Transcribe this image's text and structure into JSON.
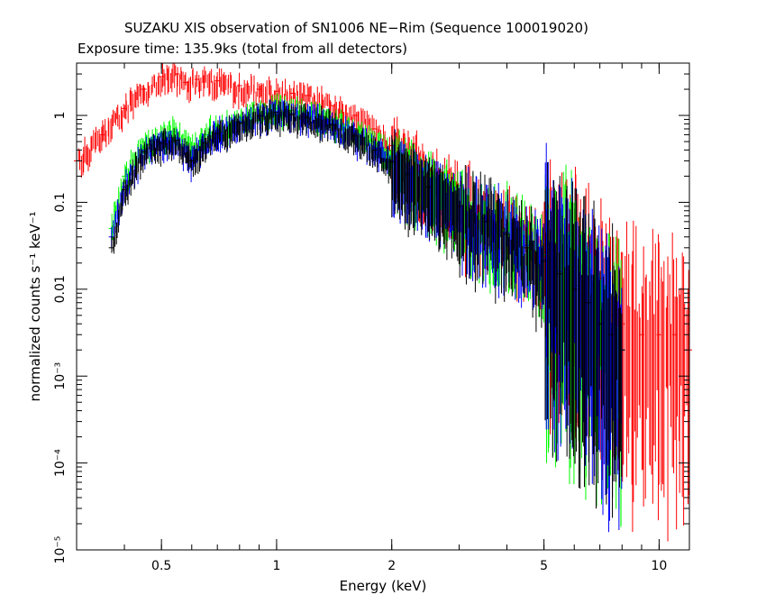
{
  "chart_data": {
    "type": "scatter",
    "title": "SUZAKU XIS observation of SN1006 NE−Rim (Sequence 100019020)",
    "subtitle": "Exposure time: 135.9ks (total from all detectors)",
    "xlabel": "Energy (keV)",
    "ylabel": "normalized counts s⁻¹ keV⁻¹",
    "xscale": "log",
    "yscale": "log",
    "xlim": [
      0.3,
      12
    ],
    "ylim": [
      1e-05,
      4
    ],
    "grid": false,
    "legend": "none",
    "x_ticks": [
      {
        "value": 0.5,
        "label": "0.5"
      },
      {
        "value": 1,
        "label": "1"
      },
      {
        "value": 2,
        "label": "2"
      },
      {
        "value": 5,
        "label": "5"
      },
      {
        "value": 10,
        "label": "10"
      }
    ],
    "y_ticks": [
      {
        "value": 1e-05,
        "label": "10⁻⁵"
      },
      {
        "value": 0.0001,
        "label": "10⁻⁴"
      },
      {
        "value": 0.001,
        "label": "10⁻³"
      },
      {
        "value": 0.01,
        "label": "0.01"
      },
      {
        "value": 0.1,
        "label": "0.1"
      },
      {
        "value": 1,
        "label": "1"
      }
    ],
    "series": [
      {
        "color": "#ff0000",
        "x": [
          0.3,
          0.35,
          0.4,
          0.45,
          0.5,
          0.55,
          0.58,
          0.62,
          0.7,
          0.8,
          0.9,
          1.0,
          1.1,
          1.2,
          1.4,
          1.6,
          1.8,
          2.0,
          2.2,
          2.5,
          3.0,
          3.5,
          4.0,
          4.5,
          5.0,
          5.5,
          6.0,
          6.5,
          7.0,
          7.5,
          8.0,
          9.0,
          10.0,
          11.0,
          12.0
        ],
        "y": [
          0.3,
          0.6,
          1.2,
          2.0,
          2.8,
          3.0,
          2.4,
          2.6,
          2.5,
          2.2,
          2.0,
          1.9,
          1.8,
          1.7,
          1.3,
          1.0,
          0.7,
          0.45,
          0.32,
          0.2,
          0.12,
          0.08,
          0.055,
          0.04,
          0.03,
          0.025,
          0.018,
          0.012,
          0.008,
          0.005,
          0.004,
          0.003,
          0.003,
          0.003,
          0.002
        ]
      },
      {
        "color": "#00ff00",
        "x": [
          0.37,
          0.4,
          0.45,
          0.5,
          0.55,
          0.6,
          0.65,
          0.7,
          0.8,
          0.9,
          1.0,
          1.1,
          1.2,
          1.4,
          1.6,
          1.8,
          2.0,
          2.2,
          2.5,
          3.0,
          3.5,
          4.0,
          4.5,
          5.0,
          5.5,
          6.0,
          6.5,
          7.0,
          7.5,
          8.0
        ],
        "y": [
          0.05,
          0.2,
          0.5,
          0.6,
          0.65,
          0.4,
          0.6,
          0.75,
          0.95,
          1.1,
          1.2,
          1.15,
          1.1,
          0.9,
          0.7,
          0.5,
          0.35,
          0.25,
          0.17,
          0.1,
          0.07,
          0.05,
          0.035,
          0.025,
          0.018,
          0.012,
          0.008,
          0.005,
          0.003,
          0.002
        ]
      },
      {
        "color": "#0000ff",
        "x": [
          0.37,
          0.4,
          0.45,
          0.5,
          0.55,
          0.6,
          0.65,
          0.7,
          0.8,
          0.9,
          1.0,
          1.1,
          1.2,
          1.4,
          1.6,
          1.8,
          2.0,
          2.2,
          2.5,
          3.0,
          3.5,
          4.0,
          4.5,
          5.0,
          5.5,
          6.0,
          6.5,
          7.0,
          7.5,
          8.0
        ],
        "y": [
          0.04,
          0.15,
          0.4,
          0.5,
          0.55,
          0.3,
          0.5,
          0.65,
          0.85,
          1.0,
          1.1,
          1.05,
          1.0,
          0.8,
          0.6,
          0.42,
          0.3,
          0.22,
          0.15,
          0.09,
          0.065,
          0.045,
          0.032,
          0.022,
          0.016,
          0.011,
          0.007,
          0.004,
          0.003,
          0.002
        ]
      },
      {
        "color": "#000000",
        "x": [
          0.37,
          0.4,
          0.45,
          0.5,
          0.55,
          0.6,
          0.65,
          0.7,
          0.8,
          0.9,
          1.0,
          1.1,
          1.2,
          1.4,
          1.6,
          1.8,
          2.0,
          2.2,
          2.5,
          3.0,
          3.5,
          4.0,
          4.5,
          5.0,
          5.5,
          6.0,
          6.5,
          7.0,
          7.5,
          8.0
        ],
        "y": [
          0.03,
          0.14,
          0.38,
          0.48,
          0.52,
          0.3,
          0.48,
          0.62,
          0.82,
          0.98,
          1.08,
          1.02,
          0.95,
          0.78,
          0.58,
          0.4,
          0.29,
          0.21,
          0.15,
          0.09,
          0.06,
          0.043,
          0.03,
          0.021,
          0.015,
          0.01,
          0.007,
          0.004,
          0.003,
          0.002
        ]
      }
    ]
  }
}
